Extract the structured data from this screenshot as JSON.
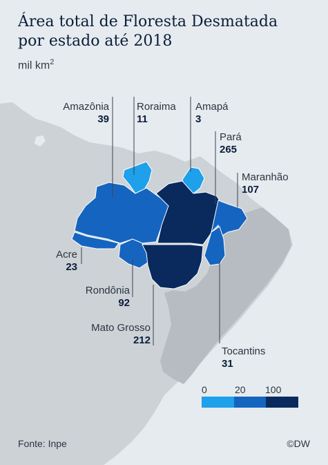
{
  "title": {
    "line1": "Área total de Floresta Desmatada",
    "line2": "por estado até 2018"
  },
  "subtitle": {
    "unit": "mil km",
    "sup": "2"
  },
  "states": [
    {
      "name": "Amazônia",
      "value": "39"
    },
    {
      "name": "Roraima",
      "value": "11"
    },
    {
      "name": "Amapá",
      "value": "3"
    },
    {
      "name": "Pará",
      "value": "265"
    },
    {
      "name": "Maranhão",
      "value": "107"
    },
    {
      "name": "Acre",
      "value": "23"
    },
    {
      "name": "Rondônia",
      "value": "92"
    },
    {
      "name": "Mato Grosso",
      "value": "212"
    },
    {
      "name": "Tocantins",
      "value": "31"
    }
  ],
  "legend": {
    "ticks": [
      "0",
      "20",
      "100"
    ],
    "colors": [
      "#1ea0ea",
      "#1565c0",
      "#0a2a5e"
    ]
  },
  "colors": {
    "background": "#e6ebef",
    "land": "#cdd2d7",
    "brazil": "#b7bcc2",
    "class_low": "#1ea0ea",
    "class_mid": "#1565c0",
    "class_high": "#0a2a5e"
  },
  "footer": {
    "source": "Fonte: Inpe",
    "credit": "©DW"
  }
}
